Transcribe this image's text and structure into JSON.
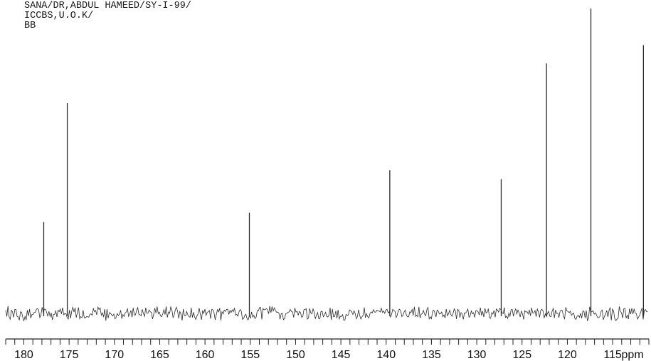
{
  "header": {
    "line1": "SANA/DR,ABDUL HAMEED/SY-I-99/",
    "line2": "ICCBS,U.O.K/",
    "line3": "BB"
  },
  "chart_data": {
    "type": "line",
    "title": "",
    "xlabel": "ppm",
    "ylabel": "",
    "xlim": [
      182,
      111
    ],
    "x_reversed": true,
    "ylim": [
      0,
      100
    ],
    "grid": false,
    "x_ticks": [
      180,
      175,
      170,
      165,
      160,
      155,
      150,
      145,
      140,
      135,
      130,
      125,
      120,
      115
    ],
    "x_tick_labels": [
      "180",
      "175",
      "170",
      "165",
      "160",
      "155",
      "150",
      "145",
      "140",
      "135",
      "130",
      "125",
      "120",
      "115"
    ],
    "unit_label": "ppm",
    "peaks": [
      {
        "ppm": 177.8,
        "intensity": 30
      },
      {
        "ppm": 175.2,
        "intensity": 69
      },
      {
        "ppm": 155.1,
        "intensity": 33
      },
      {
        "ppm": 139.6,
        "intensity": 47
      },
      {
        "ppm": 127.3,
        "intensity": 44
      },
      {
        "ppm": 122.3,
        "intensity": 82
      },
      {
        "ppm": 117.4,
        "intensity": 100
      },
      {
        "ppm": 111.6,
        "intensity": 88
      }
    ],
    "colors": {
      "trace": "#2b2b2b",
      "axis": "#222222"
    }
  }
}
